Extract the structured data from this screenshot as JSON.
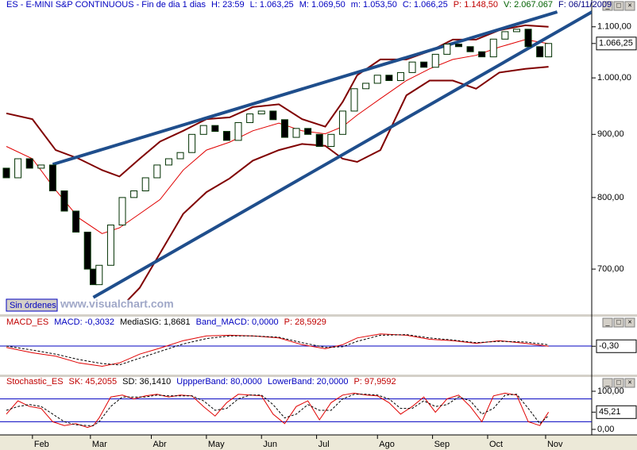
{
  "chart_data": [
    {
      "type": "candlestick",
      "header": [
        {
          "text": "ES - E-MINI S&P CONTINUOUS - Fin de dia 1 dias",
          "color": "#0000c0"
        },
        {
          "text": "H: 23:59",
          "color": "#0000c0"
        },
        {
          "text": "L: 1.063,25",
          "color": "#0000c0"
        },
        {
          "text": "M: 1.069,50",
          "color": "#0000c0"
        },
        {
          "text": "m: 1.053,50",
          "color": "#0000c0"
        },
        {
          "text": "C: 1.066,25",
          "color": "#0000c0"
        },
        {
          "text": "P: 1.148,50",
          "color": "#c00000"
        },
        {
          "text": "V: 2.067.067",
          "color": "#006000"
        },
        {
          "text": "F: 06/11/2009",
          "color": "#000080"
        }
      ],
      "x": [
        0,
        4,
        8,
        12,
        16,
        20,
        24,
        28,
        30,
        32,
        36,
        40,
        44,
        48,
        52,
        56,
        60,
        64,
        68,
        72,
        76,
        80,
        84,
        88,
        92,
        96,
        100,
        104,
        108,
        112,
        116,
        120,
        124,
        128,
        132,
        136,
        140,
        144,
        148,
        152,
        156,
        160,
        164,
        168,
        172,
        176,
        180,
        184,
        187
      ],
      "open": [
        845,
        830,
        860,
        845,
        850,
        810,
        780,
        750,
        700,
        680,
        705,
        760,
        800,
        810,
        830,
        850,
        860,
        870,
        900,
        915,
        905,
        890,
        920,
        935,
        940,
        925,
        895,
        910,
        900,
        880,
        900,
        940,
        980,
        990,
        1005,
        995,
        1010,
        1030,
        1020,
        1045,
        1065,
        1060,
        1050,
        1040,
        1075,
        1090,
        1095,
        1060,
        1040
      ],
      "close": [
        830,
        860,
        845,
        850,
        810,
        780,
        750,
        700,
        680,
        705,
        760,
        800,
        810,
        830,
        850,
        860,
        870,
        900,
        915,
        905,
        890,
        920,
        935,
        940,
        925,
        895,
        910,
        900,
        880,
        900,
        940,
        980,
        990,
        1005,
        995,
        1010,
        1030,
        1020,
        1045,
        1065,
        1060,
        1050,
        1040,
        1075,
        1090,
        1095,
        1060,
        1040,
        1066.25
      ],
      "up_color": "#ffffff",
      "down_color": "#000000",
      "candle_edge": "#003000",
      "xlim": [
        -2.19,
        201.9
      ],
      "ylim": [
        660.8,
        1136
      ],
      "log": true,
      "yticks": [
        {
          "value": 700,
          "label": "700,00"
        },
        {
          "value": 800,
          "label": "800,00"
        },
        {
          "value": 900,
          "label": "900,00"
        },
        {
          "value": 1000,
          "label": "1.000,00"
        },
        {
          "value": 1100,
          "label": "1.100,00"
        }
      ],
      "last_value": 1066.25,
      "last_label": "1.066,25",
      "bands": {
        "x": [
          0,
          9,
          17,
          25,
          33,
          39,
          46,
          53,
          61,
          69,
          77,
          85,
          94,
          102,
          110,
          116,
          121,
          129,
          138,
          146,
          154,
          162,
          170,
          179,
          187
        ],
        "upper": [
          936,
          926,
          874,
          860,
          842,
          832,
          860,
          888,
          906,
          926,
          929,
          947,
          952,
          926,
          913,
          956,
          1005,
          1035,
          1035,
          1051,
          1074,
          1074,
          1093,
          1103,
          1100
        ],
        "middle": [
          880,
          860,
          811,
          770,
          748,
          756,
          776,
          797,
          842,
          874,
          887,
          906,
          919,
          906,
          901,
          913,
          933,
          962,
          995,
          1017,
          1035,
          1043,
          1059,
          1074,
          1066
        ],
        "lower": [
          null,
          null,
          null,
          null,
          640,
          650,
          676,
          721,
          776,
          808,
          829,
          857,
          874,
          884,
          881,
          860,
          855,
          874,
          968,
          995,
          995,
          980,
          1010,
          1017,
          1021
        ],
        "color": "#800000",
        "middle_color": "#e00000"
      },
      "trendlines": [
        {
          "x": [
            16,
            190
          ],
          "values": [
            851,
            1131
          ]
        },
        {
          "x": [
            30,
            202
          ],
          "values": [
            664,
            1131
          ]
        }
      ],
      "trend_color": "#1f4e8c",
      "button": "Sin órdenes",
      "watermark": "www.visualchart.com"
    },
    {
      "type": "line",
      "header": [
        {
          "text": "MACD_ES",
          "color": "#c00000"
        },
        {
          "text": "MACD: -0,3032",
          "color": "#0000c0"
        },
        {
          "text": "MediaSIG: 1,8681",
          "color": "#000000"
        },
        {
          "text": "Band_MACD: 0,0000",
          "color": "#0000c0"
        },
        {
          "text": "P: 28,5929",
          "color": "#c00000"
        }
      ],
      "x": [
        0,
        9,
        17,
        25,
        33,
        39,
        46,
        53,
        61,
        69,
        77,
        85,
        94,
        102,
        110,
        116,
        121,
        129,
        138,
        146,
        154,
        162,
        170,
        179,
        187
      ],
      "series": [
        {
          "color": "#e00000",
          "values": [
            -2,
            -10,
            -15,
            -25,
            -30,
            -25,
            -12,
            -3,
            8,
            15,
            16,
            15,
            12,
            2,
            -4,
            2,
            12,
            18,
            16,
            10,
            8,
            4,
            8,
            4,
            -0.3032
          ]
        },
        {
          "color": "#000000",
          "dash": true,
          "values": [
            0,
            -6,
            -12,
            -20,
            -26,
            -28,
            -18,
            -8,
            3,
            11,
            15,
            15,
            13,
            5,
            -2,
            -1,
            7,
            16,
            17,
            12,
            9,
            5,
            7,
            6,
            1.8681
          ]
        }
      ],
      "band": 0,
      "band_color": "#0000c0",
      "xlim": [
        -2.19,
        201.9
      ],
      "ylim": [
        -40,
        40
      ],
      "last_value": -0.3032,
      "last_label": "-0,30"
    },
    {
      "type": "line",
      "header": [
        {
          "text": "Stochastic_ES",
          "color": "#c00000"
        },
        {
          "text": "SK: 45,2055",
          "color": "#c00000"
        },
        {
          "text": "SD: 36,1410",
          "color": "#000000"
        },
        {
          "text": "UppperBand: 80,0000",
          "color": "#0000c0"
        },
        {
          "text": "LowerBand: 20,0000",
          "color": "#0000c0"
        },
        {
          "text": "P: 97,9592",
          "color": "#c00000"
        }
      ],
      "x": [
        0,
        4,
        8,
        12,
        16,
        20,
        24,
        28,
        30,
        32,
        36,
        40,
        44,
        48,
        52,
        56,
        60,
        64,
        68,
        72,
        76,
        80,
        84,
        88,
        92,
        96,
        100,
        104,
        108,
        112,
        116,
        120,
        124,
        128,
        132,
        136,
        140,
        144,
        148,
        152,
        156,
        160,
        164,
        168,
        172,
        176,
        180,
        184,
        187
      ],
      "series": [
        {
          "color": "#e00000",
          "values": [
            40,
            75,
            60,
            55,
            20,
            10,
            15,
            5,
            10,
            30,
            85,
            90,
            80,
            88,
            92,
            85,
            90,
            88,
            60,
            35,
            70,
            92,
            90,
            88,
            40,
            15,
            60,
            75,
            25,
            70,
            90,
            95,
            90,
            88,
            70,
            40,
            60,
            85,
            45,
            80,
            90,
            60,
            20,
            88,
            95,
            90,
            20,
            10,
            45.2055
          ]
        },
        {
          "color": "#000000",
          "dash": true,
          "values": [
            50,
            60,
            65,
            60,
            40,
            20,
            12,
            10,
            10,
            20,
            60,
            85,
            85,
            85,
            90,
            88,
            88,
            88,
            75,
            50,
            55,
            80,
            90,
            90,
            65,
            30,
            40,
            65,
            50,
            50,
            80,
            92,
            92,
            90,
            80,
            55,
            55,
            75,
            60,
            65,
            85,
            75,
            40,
            55,
            90,
            92,
            55,
            15,
            36.141
          ]
        }
      ],
      "bands": [
        80,
        20
      ],
      "band_color": "#0000c0",
      "xlim": [
        -2.19,
        201.9
      ],
      "ylim": [
        0,
        100
      ],
      "yticks": [
        {
          "value": 0,
          "label": "0,00"
        },
        {
          "value": 100,
          "label": "100,00"
        }
      ],
      "last_value": 45.2055,
      "last_label": "45,21",
      "xticks": [
        {
          "value": 9,
          "label": "Feb"
        },
        {
          "value": 29,
          "label": "Mar"
        },
        {
          "value": 50,
          "label": "Abr"
        },
        {
          "value": 69,
          "label": "May"
        },
        {
          "value": 88,
          "label": "Jun"
        },
        {
          "value": 107,
          "label": "Jul"
        },
        {
          "value": 128,
          "label": "Ago"
        },
        {
          "value": 147,
          "label": "Sep"
        },
        {
          "value": 166,
          "label": "Oct"
        },
        {
          "value": 186,
          "label": "Nov"
        }
      ]
    }
  ]
}
